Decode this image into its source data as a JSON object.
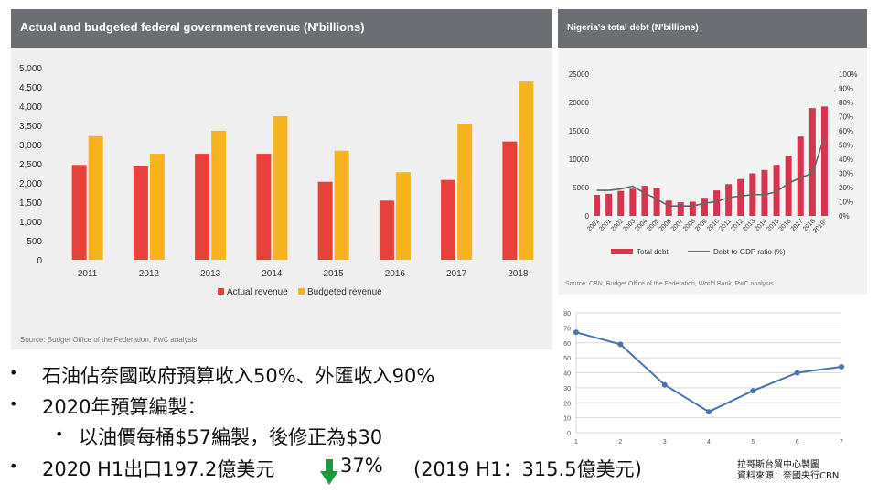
{
  "colors": {
    "actual": "#e8413a",
    "budgeted": "#f7b41f",
    "debt_bar": "#d6354f",
    "ratio_line": "#666666",
    "line_series": "#4a72b0",
    "arrow": "#1a9a3c"
  },
  "revenue_panel": {
    "title": "Actual and budgeted federal government revenue (N'billions)",
    "source": "Source: Budget Office of the Federation, PwC analysis"
  },
  "debt_panel": {
    "title": "Nigeria's total debt (N'billions)",
    "source": "Source: CBN, Budget Office of the Federation, World Bank, PwC analysis"
  },
  "bullets": {
    "b1": "石油佔奈國政府預算收入50%、外匯收入90%",
    "b2": "2020年預算編製：",
    "b3": "以油價每桶$57編製，後修正為$30",
    "b4_a": "2020 H1出口197.2億美元",
    "b4_b": "37%",
    "b4_c": "(2019 H1：315.5億美元)"
  },
  "credit": {
    "line1": "拉哥斯台貿中心製圖",
    "line2": "資料來源：奈國央行CBN"
  },
  "chart_data": [
    {
      "type": "bar",
      "title": "Actual and budgeted federal government revenue (N'billions)",
      "categories": [
        "2011",
        "2012",
        "2013",
        "2014",
        "2015",
        "2016",
        "2017",
        "2018"
      ],
      "series": [
        {
          "name": "Actual revenue",
          "values": [
            2470,
            2430,
            2760,
            2760,
            2030,
            1540,
            2080,
            3080
          ]
        },
        {
          "name": "Budgeted revenue",
          "values": [
            3220,
            2760,
            3360,
            3740,
            2840,
            2280,
            3540,
            4640
          ]
        }
      ],
      "ylim": [
        0,
        5000
      ],
      "yticks": [
        "0",
        "500",
        "1,000",
        "1,500",
        "2,000",
        "2,500",
        "3,000",
        "3,500",
        "4,000",
        "4,500",
        "5,000"
      ],
      "legend": "bottom",
      "grid": false
    },
    {
      "type": "bar",
      "title": "Nigeria's total debt (N'billions)",
      "categories": [
        "2001",
        "2001",
        "2002",
        "2003",
        "2004",
        "2005",
        "2006",
        "2007",
        "2008",
        "2009",
        "2010",
        "2011",
        "2012",
        "2013",
        "2014",
        "2015",
        "2016",
        "2017",
        "2018",
        "2019*"
      ],
      "series": [
        {
          "name": "Total debt",
          "values": [
            3700,
            3900,
            4400,
            4800,
            5300,
            4900,
            2700,
            2400,
            2500,
            3200,
            4500,
            5600,
            6500,
            7500,
            8100,
            9000,
            10600,
            14000,
            19000,
            19300
          ]
        },
        {
          "name": "Debt-to-GDP ratio (%)",
          "values": [
            18,
            18,
            19,
            21,
            16,
            12,
            7,
            7,
            7,
            9,
            10,
            13,
            14,
            15,
            15,
            17,
            23,
            27,
            30,
            56
          ]
        }
      ],
      "ylim": [
        0,
        25000
      ],
      "yticks": [
        "0",
        "5000",
        "10000",
        "15000",
        "20000",
        "25000"
      ],
      "y2lim": [
        0,
        100
      ],
      "y2ticks": [
        "0%",
        "10%",
        "20%",
        "30%",
        "40%",
        "50%",
        "60%",
        "70%",
        "80%",
        "90%",
        "100%"
      ],
      "legend": "bottom",
      "grid": false
    },
    {
      "type": "line",
      "x": [
        1,
        2,
        3,
        4,
        5,
        6,
        7
      ],
      "series": [
        {
          "values": [
            67,
            59,
            32,
            14,
            28,
            40,
            44
          ]
        }
      ],
      "ylim": [
        0,
        80
      ],
      "yticks": [
        "0",
        "10",
        "20",
        "30",
        "40",
        "50",
        "60",
        "70",
        "80"
      ],
      "xticks": [
        "1",
        "2",
        "3",
        "4",
        "5",
        "6",
        "7"
      ],
      "grid": true
    }
  ]
}
